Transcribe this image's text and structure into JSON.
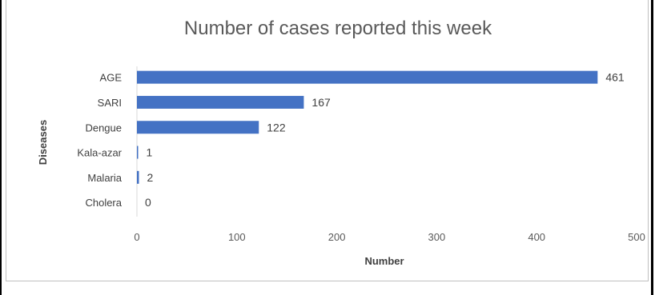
{
  "chart_data": {
    "type": "bar",
    "orientation": "horizontal",
    "title": "Number of cases reported this week",
    "xlabel": "Number",
    "ylabel": "Diseases",
    "categories": [
      "AGE",
      "SARI",
      "Dengue",
      "Kala-azar",
      "Malaria",
      "Cholera"
    ],
    "values": [
      461,
      167,
      122,
      1,
      2,
      0
    ],
    "xlim": [
      0,
      500
    ],
    "xticks": [
      0,
      100,
      200,
      300,
      400,
      500
    ],
    "grid": false,
    "legend": "none",
    "bar_color": "#4472c4"
  }
}
